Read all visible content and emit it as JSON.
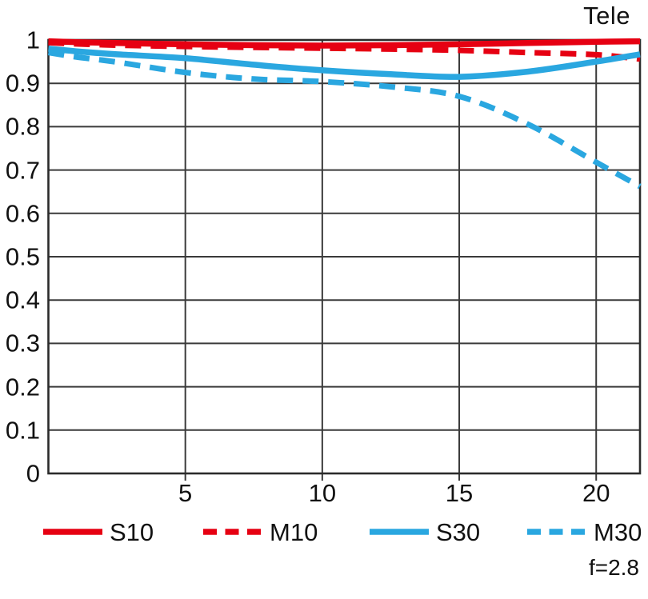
{
  "title": "Tele",
  "aperture_label": "f=2.8",
  "colors": {
    "red": "#e60012",
    "blue": "#2aa7e0",
    "grid": "#3a3a3a",
    "border": "#2b2b2b",
    "text": "#111111"
  },
  "axes": {
    "y_ticks": [
      {
        "label": "1",
        "value": 1.0
      },
      {
        "label": "0.9",
        "value": 0.9
      },
      {
        "label": "0.8",
        "value": 0.8
      },
      {
        "label": "0.7",
        "value": 0.7
      },
      {
        "label": "0.6",
        "value": 0.6
      },
      {
        "label": "0.5",
        "value": 0.5
      },
      {
        "label": "0.4",
        "value": 0.4
      },
      {
        "label": "0.3",
        "value": 0.3
      },
      {
        "label": "0.2",
        "value": 0.2
      },
      {
        "label": "0.1",
        "value": 0.1
      },
      {
        "label": "0",
        "value": 0.0
      }
    ],
    "x_ticks": [
      {
        "label": "5",
        "value": 5
      },
      {
        "label": "10",
        "value": 10
      },
      {
        "label": "15",
        "value": 15
      },
      {
        "label": "20",
        "value": 20
      }
    ]
  },
  "legend": [
    {
      "label": "S10",
      "color": "#e60012",
      "dashed": false
    },
    {
      "label": "M10",
      "color": "#e60012",
      "dashed": true
    },
    {
      "label": "S30",
      "color": "#2aa7e0",
      "dashed": false
    },
    {
      "label": "M30",
      "color": "#2aa7e0",
      "dashed": true
    }
  ],
  "chart_data": {
    "type": "line",
    "title": "Tele",
    "annotation": "f=2.8",
    "xlabel": "",
    "ylabel": "",
    "xlim": [
      0,
      21.6
    ],
    "ylim": [
      0,
      1
    ],
    "grid": true,
    "legend_position": "bottom",
    "x": [
      0,
      1,
      2.5,
      5,
      7.5,
      10,
      12.5,
      15,
      17.5,
      20,
      21.6
    ],
    "series": [
      {
        "name": "S10",
        "color": "#e60012",
        "style": "solid",
        "values": [
          0.997,
          0.995,
          0.993,
          0.99,
          0.988,
          0.987,
          0.988,
          0.99,
          0.993,
          0.996,
          0.997
        ]
      },
      {
        "name": "M10",
        "color": "#e60012",
        "style": "dashed",
        "values": [
          0.994,
          0.991,
          0.988,
          0.985,
          0.983,
          0.981,
          0.979,
          0.976,
          0.971,
          0.966,
          0.956
        ]
      },
      {
        "name": "S30",
        "color": "#2aa7e0",
        "style": "solid",
        "values": [
          0.98,
          0.974,
          0.967,
          0.958,
          0.943,
          0.93,
          0.921,
          0.915,
          0.927,
          0.95,
          0.967
        ]
      },
      {
        "name": "M30",
        "color": "#2aa7e0",
        "style": "dashed",
        "values": [
          0.971,
          0.961,
          0.949,
          0.925,
          0.91,
          0.904,
          0.892,
          0.87,
          0.806,
          0.718,
          0.662
        ]
      }
    ]
  }
}
